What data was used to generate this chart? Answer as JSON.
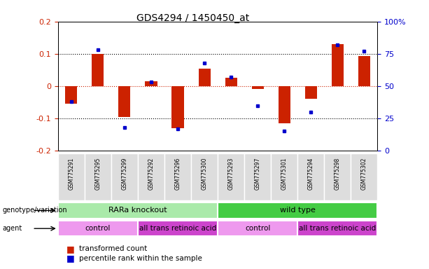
{
  "title": "GDS4294 / 1450450_at",
  "samples": [
    "GSM775291",
    "GSM775295",
    "GSM775299",
    "GSM775292",
    "GSM775296",
    "GSM775300",
    "GSM775293",
    "GSM775297",
    "GSM775301",
    "GSM775294",
    "GSM775298",
    "GSM775302"
  ],
  "bar_values": [
    -0.055,
    0.1,
    -0.095,
    0.015,
    -0.13,
    0.055,
    0.025,
    -0.01,
    -0.115,
    -0.04,
    0.13,
    0.093
  ],
  "dot_values": [
    0.38,
    0.78,
    0.18,
    0.53,
    0.17,
    0.68,
    0.57,
    0.35,
    0.15,
    0.3,
    0.82,
    0.77
  ],
  "bar_color": "#cc2200",
  "dot_color": "#0000cc",
  "ylim_left": [
    -0.2,
    0.2
  ],
  "ylim_right": [
    0.0,
    1.0
  ],
  "yticks_left": [
    -0.2,
    -0.1,
    0.0,
    0.1,
    0.2
  ],
  "ytick_labels_left": [
    "-0.2",
    "-0.1",
    "0",
    "0.1",
    "0.2"
  ],
  "yticks_right": [
    0.0,
    0.25,
    0.5,
    0.75,
    1.0
  ],
  "ytick_labels_right": [
    "0",
    "25",
    "50",
    "75",
    "100%"
  ],
  "hlines": [
    -0.1,
    0.0,
    0.1
  ],
  "hline_colors": [
    "black",
    "#cc2200",
    "black"
  ],
  "hline_styles": [
    "dotted",
    "dotted",
    "dotted"
  ],
  "genotype_groups": [
    {
      "label": "RARa knockout",
      "start": 0,
      "end": 6,
      "color": "#aaeaaa"
    },
    {
      "label": "wild type",
      "start": 6,
      "end": 12,
      "color": "#44cc44"
    }
  ],
  "agent_groups": [
    {
      "label": "control",
      "start": 0,
      "end": 3,
      "color": "#ee99ee"
    },
    {
      "label": "all trans retinoic acid",
      "start": 3,
      "end": 6,
      "color": "#cc44cc"
    },
    {
      "label": "control",
      "start": 6,
      "end": 9,
      "color": "#ee99ee"
    },
    {
      "label": "all trans retinoic acid",
      "start": 9,
      "end": 12,
      "color": "#cc44cc"
    }
  ],
  "row_labels": [
    "genotype/variation",
    "agent"
  ],
  "legend_items": [
    {
      "label": "transformed count",
      "color": "#cc2200"
    },
    {
      "label": "percentile rank within the sample",
      "color": "#0000cc"
    }
  ],
  "background_color": "#ffffff"
}
